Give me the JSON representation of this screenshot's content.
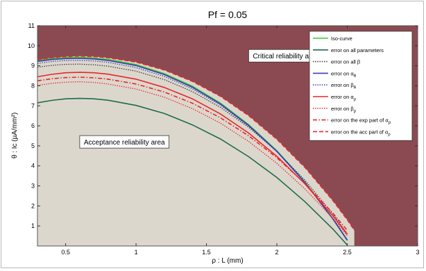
{
  "chart_data": {
    "type": "line",
    "title": "Pf = 0.05",
    "xlabel": "ρ : L (mm)",
    "ylabel": "θ : Ic (µA/mm²)",
    "xlim": [
      0.3,
      3
    ],
    "ylim": [
      0,
      11
    ],
    "x_ticks": [
      "0.5",
      "1",
      "1.5",
      "2",
      "2.5",
      "3"
    ],
    "y_ticks": [
      "1",
      "2",
      "3",
      "4",
      "5",
      "6",
      "7",
      "8",
      "9",
      "10",
      "11"
    ],
    "grid": false,
    "legend_position": "top-right",
    "colors": {
      "critical_area": "#8b4a51",
      "acceptance_area": "#dcd7cd",
      "frame_bg": "#ffffff"
    },
    "annotations": [
      {
        "text": "Critical reliability area",
        "at": [
          1.8,
          9.5
        ]
      },
      {
        "text": "Acceptance reliability area",
        "at": [
          0.6,
          5.2
        ]
      }
    ],
    "series": [
      {
        "name": "Iso-curve",
        "color": "#33cc33",
        "dash": "solid",
        "x": [
          0.3,
          0.4,
          0.5,
          0.6,
          0.7,
          0.8,
          1.0,
          1.2,
          1.4,
          1.6,
          1.8,
          2.0,
          2.2,
          2.4,
          2.5
        ],
        "y": [
          9.27,
          9.36,
          9.41,
          9.42,
          9.39,
          9.32,
          9.06,
          8.61,
          7.98,
          7.13,
          6.06,
          4.76,
          3.19,
          1.34,
          0.3
        ]
      },
      {
        "name": "error on all parameters",
        "color": "#1e6b4e",
        "dash": "solid",
        "x": [
          0.3,
          0.4,
          0.5,
          0.6,
          0.7,
          0.8,
          1.0,
          1.2,
          1.4,
          1.6,
          1.8,
          2.0,
          2.2,
          2.4,
          2.5
        ],
        "y": [
          7.15,
          7.27,
          7.35,
          7.37,
          7.35,
          7.28,
          7.02,
          6.62,
          6.05,
          5.34,
          4.46,
          3.42,
          2.21,
          0.83,
          0.05
        ]
      },
      {
        "name": "error on all β",
        "color": "#333333",
        "dash": "dot",
        "x": [
          0.3,
          0.4,
          0.5,
          0.6,
          0.7,
          0.8,
          1.0,
          1.2,
          1.4,
          1.6,
          1.8,
          2.0,
          2.2,
          2.4,
          2.5
        ],
        "y": [
          8.93,
          9.02,
          9.07,
          9.08,
          9.05,
          8.98,
          8.73,
          8.31,
          7.71,
          6.92,
          5.93,
          4.72,
          3.28,
          1.58,
          0.62
        ]
      },
      {
        "name": "error on α_θ",
        "color": "#3b3bb0",
        "dash": "solid",
        "x": [
          0.3,
          0.4,
          0.5,
          0.6,
          0.7,
          0.8,
          1.0,
          1.2,
          1.4,
          1.6,
          1.8,
          2.0,
          2.2,
          2.4,
          2.5
        ],
        "y": [
          9.22,
          9.31,
          9.36,
          9.37,
          9.34,
          9.27,
          9.01,
          8.56,
          7.93,
          7.09,
          6.02,
          4.73,
          3.17,
          1.33,
          0.28
        ]
      },
      {
        "name": "error on β_θ",
        "color": "#3b3bb0",
        "dash": "dot",
        "x": [
          0.3,
          0.4,
          0.5,
          0.6,
          0.7,
          0.8,
          1.0,
          1.2,
          1.4,
          1.6,
          1.8,
          2.0,
          2.2,
          2.4,
          2.5
        ],
        "y": [
          9.12,
          9.21,
          9.26,
          9.27,
          9.24,
          9.17,
          8.91,
          8.47,
          7.85,
          7.03,
          5.98,
          4.71,
          3.17,
          1.35,
          0.32
        ]
      },
      {
        "name": "error on α_ρ",
        "color": "#e8262b",
        "dash": "solid",
        "x": [
          0.3,
          0.4,
          0.5,
          0.6,
          0.7,
          0.8,
          1.0,
          1.2,
          1.4,
          1.6,
          1.8,
          2.0,
          2.2,
          2.4,
          2.5
        ],
        "y": [
          8.45,
          8.57,
          8.65,
          8.67,
          8.65,
          8.58,
          8.33,
          7.92,
          7.35,
          6.59,
          5.64,
          4.48,
          3.1,
          1.49,
          0.58
        ]
      },
      {
        "name": "error on β_ρ",
        "color": "#e8262b",
        "dash": "dot",
        "x": [
          0.3,
          0.4,
          0.5,
          0.6,
          0.7,
          0.8,
          1.0,
          1.2,
          1.4,
          1.6,
          1.8,
          2.0,
          2.2,
          2.4,
          2.5
        ],
        "y": [
          8.02,
          8.12,
          8.18,
          8.2,
          8.17,
          8.09,
          7.84,
          7.43,
          6.86,
          6.13,
          5.22,
          4.13,
          2.85,
          1.36,
          0.52
        ]
      },
      {
        "name": "error on the exp part of α_ρ",
        "color": "#e8262b",
        "dash": "dashdot",
        "x": [
          0.3,
          0.4,
          0.5,
          0.6,
          0.7,
          0.8,
          1.0,
          1.2,
          1.4,
          1.6,
          1.8,
          2.0,
          2.2,
          2.4,
          2.5
        ],
        "y": [
          8.25,
          8.35,
          8.41,
          8.43,
          8.4,
          8.33,
          8.09,
          7.69,
          7.13,
          6.4,
          5.5,
          4.41,
          3.12,
          1.62,
          0.78
        ]
      },
      {
        "name": "error on the acc part of α_ρ",
        "color": "#e8262b",
        "dash": "dash",
        "x": [
          0.3,
          0.4,
          0.5,
          0.6,
          0.7,
          0.8,
          1.0,
          1.2,
          1.4,
          1.6,
          1.8,
          2.0,
          2.2,
          2.4,
          2.5,
          2.55
        ],
        "y": [
          9.3,
          9.4,
          9.46,
          9.48,
          9.46,
          9.4,
          9.18,
          8.79,
          8.22,
          7.47,
          6.51,
          5.33,
          3.92,
          2.25,
          1.31,
          0.78
        ]
      }
    ]
  }
}
